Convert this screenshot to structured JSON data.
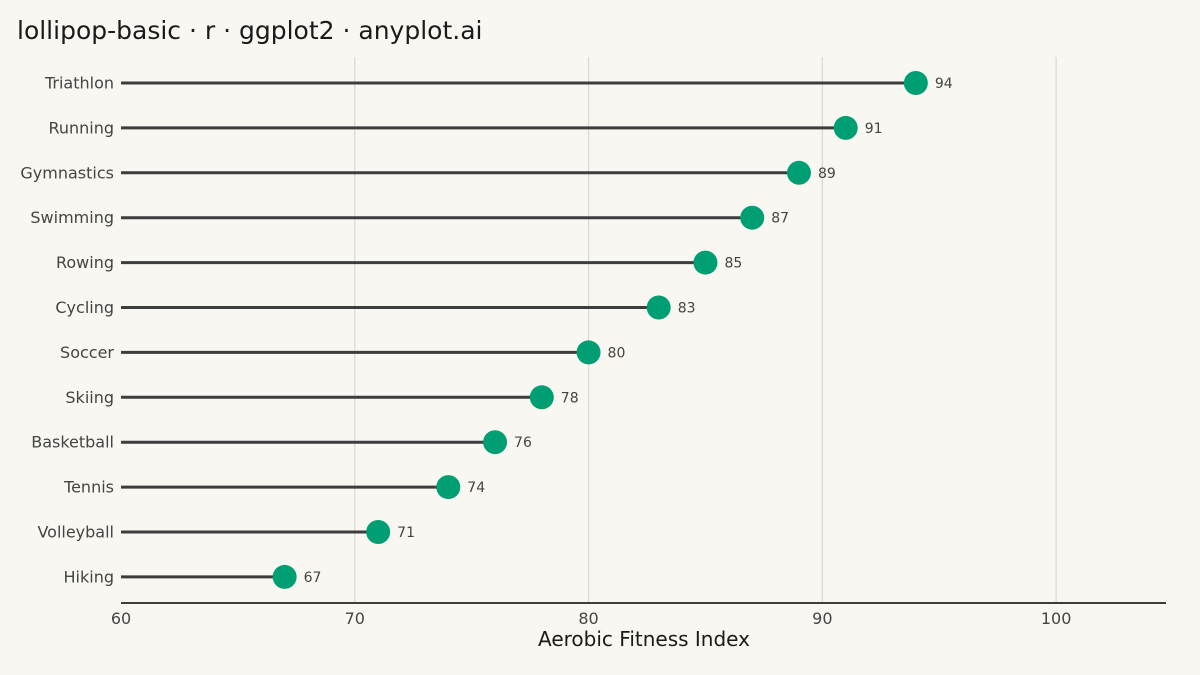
{
  "chart_data": {
    "type": "lollipop",
    "title": "lollipop-basic · r · ggplot2 · anyplot.ai",
    "xlabel": "Aerobic Fitness Index",
    "ylabel": "",
    "xlim": [
      60,
      104.7
    ],
    "xticks": [
      60,
      70,
      80,
      90,
      100
    ],
    "grid": "vertical major",
    "legend": "none",
    "categories": [
      "Triathlon",
      "Running",
      "Gymnastics",
      "Swimming",
      "Rowing",
      "Cycling",
      "Soccer",
      "Skiing",
      "Basketball",
      "Tennis",
      "Volleyball",
      "Hiking"
    ],
    "values": [
      94,
      91,
      89,
      87,
      85,
      83,
      80,
      78,
      76,
      74,
      71,
      67
    ],
    "colors": {
      "point": "#009E73",
      "stem": "#3D3D3D",
      "grid": "#D9D8D2",
      "axis": "#3D3D3D",
      "text": "#444444",
      "background": "#F9F7F1"
    }
  }
}
